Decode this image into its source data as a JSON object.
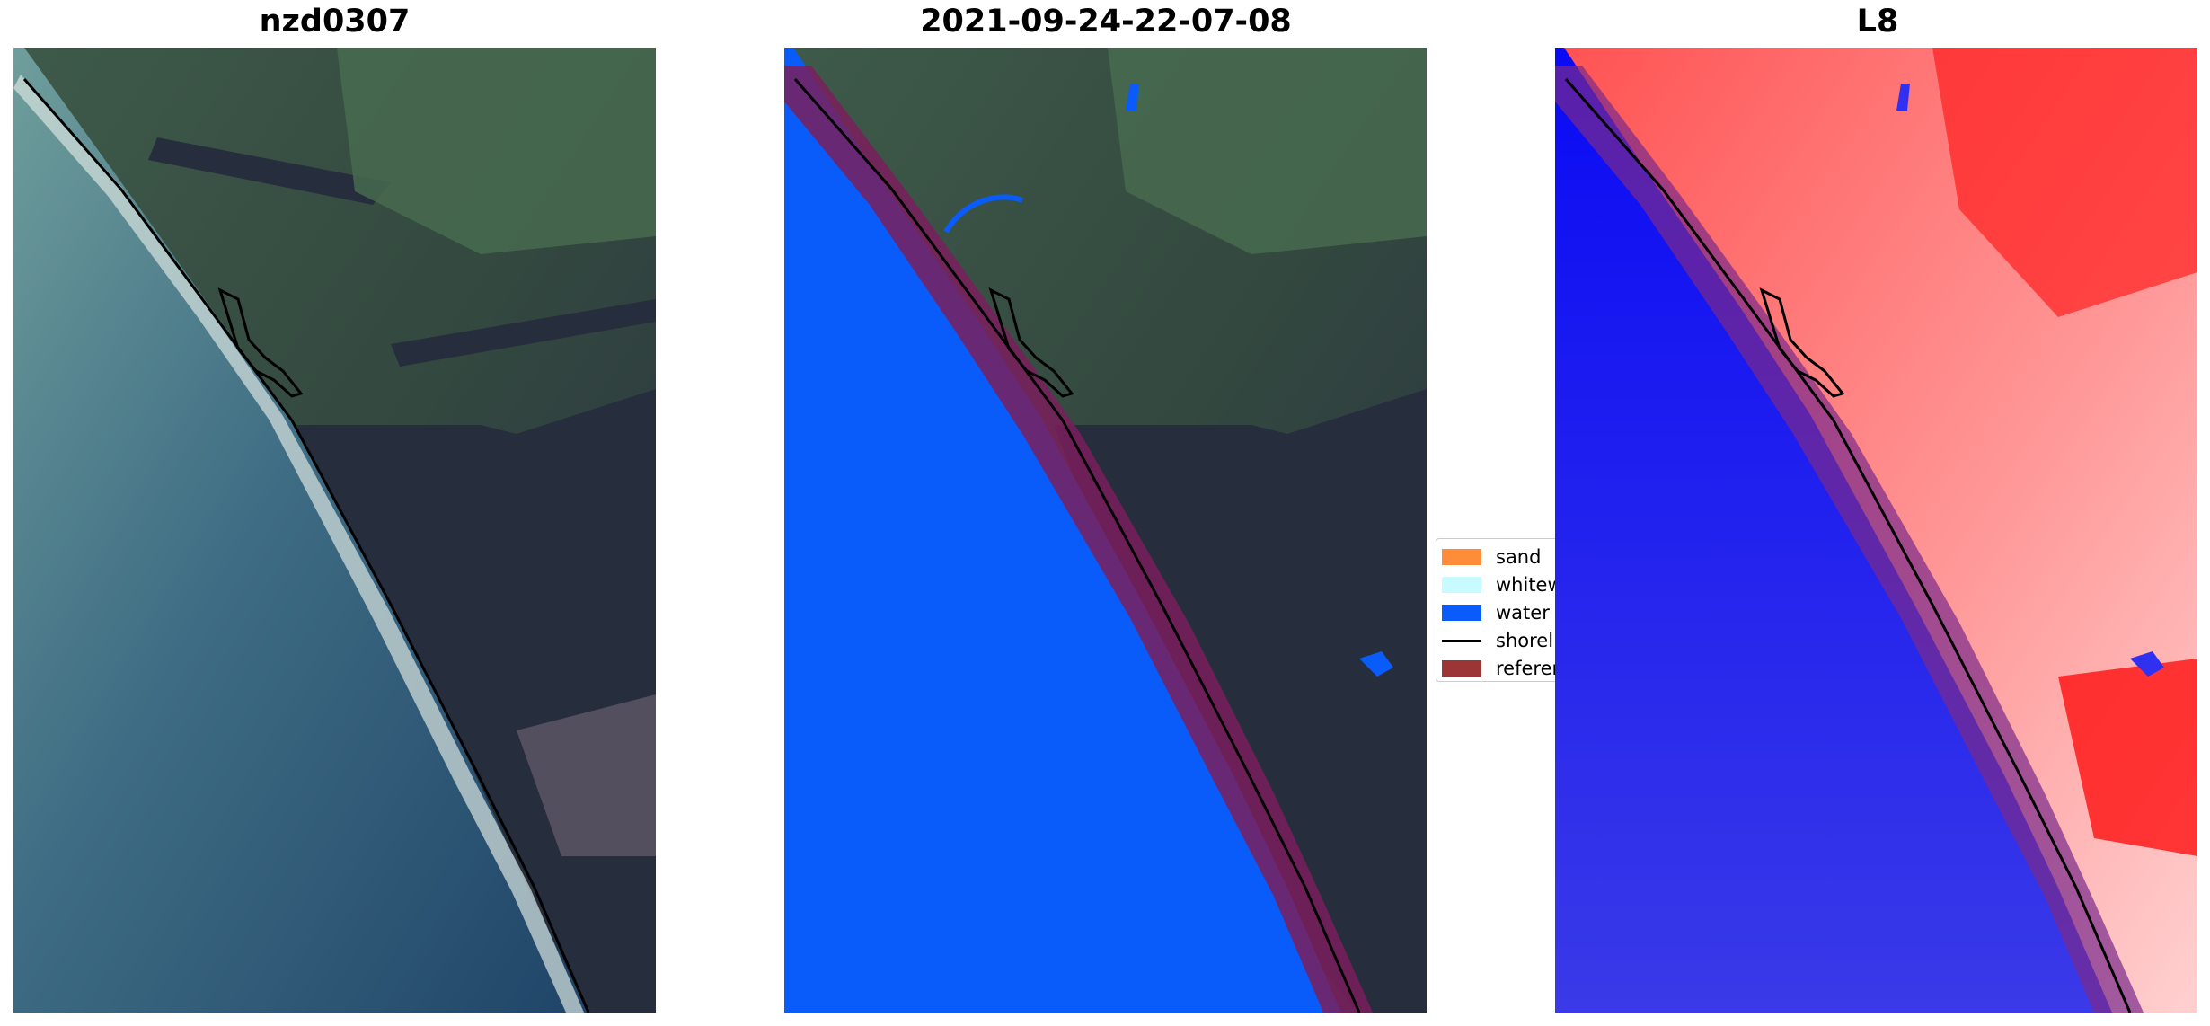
{
  "panels": [
    {
      "title": "nzd0307"
    },
    {
      "title": "2021-09-24-22-07-08"
    },
    {
      "title": "L8"
    }
  ],
  "legend": {
    "items": [
      {
        "label": "sand",
        "color": "#ff8c38",
        "kind": "patch"
      },
      {
        "label": "whitew",
        "color": "#c8fbff",
        "kind": "patch"
      },
      {
        "label": "water",
        "color": "#0a5cfa",
        "kind": "patch"
      },
      {
        "label": "shorel",
        "color": "#000000",
        "kind": "line"
      },
      {
        "label": "referen",
        "color": "#9c3535",
        "kind": "patch"
      }
    ]
  },
  "colors": {
    "ocean_dark": "#1f4468",
    "ocean_mid": "#4d7d8f",
    "ocean_light": "#6f9e9c",
    "land_green": "#3e5a4a",
    "forest_dark": "#262d3d",
    "water_class": "#0a5cfa",
    "reference_buffer": "#7a1f5c",
    "index_water": "#1010f0",
    "index_land": "#ff2a2a"
  }
}
